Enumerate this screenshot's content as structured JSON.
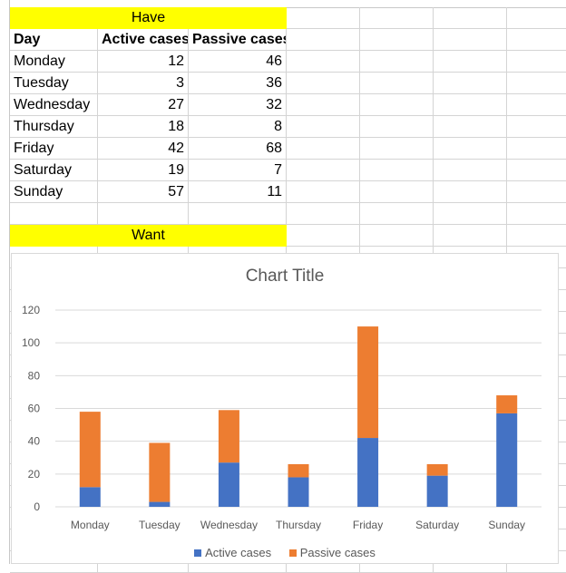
{
  "sheet": {
    "have_label": "Have",
    "want_label": "Want",
    "headers": [
      "Day",
      "Active cases",
      "Passive cases"
    ],
    "rows": [
      {
        "day": "Monday",
        "active": "12",
        "passive": "46"
      },
      {
        "day": "Tuesday",
        "active": "3",
        "passive": "36"
      },
      {
        "day": "Wednesday",
        "active": "27",
        "passive": "32"
      },
      {
        "day": "Thursday",
        "active": "18",
        "passive": "8"
      },
      {
        "day": "Friday",
        "active": "42",
        "passive": "68"
      },
      {
        "day": "Saturday",
        "active": "19",
        "passive": "7"
      },
      {
        "day": "Sunday",
        "active": "57",
        "passive": "11"
      }
    ]
  },
  "chart_data": {
    "type": "bar",
    "stacked": true,
    "title": "Chart Title",
    "categories": [
      "Monday",
      "Tuesday",
      "Wednesday",
      "Thursday",
      "Friday",
      "Saturday",
      "Sunday"
    ],
    "series": [
      {
        "name": "Active cases",
        "values": [
          12,
          3,
          27,
          18,
          42,
          19,
          57
        ],
        "color": "#4472c4"
      },
      {
        "name": "Passive cases",
        "values": [
          46,
          36,
          32,
          8,
          68,
          7,
          11
        ],
        "color": "#ed7d31"
      }
    ],
    "ylim": [
      0,
      120
    ],
    "yticks": [
      0,
      20,
      40,
      60,
      80,
      100,
      120
    ],
    "grid": true,
    "legend_position": "bottom"
  }
}
